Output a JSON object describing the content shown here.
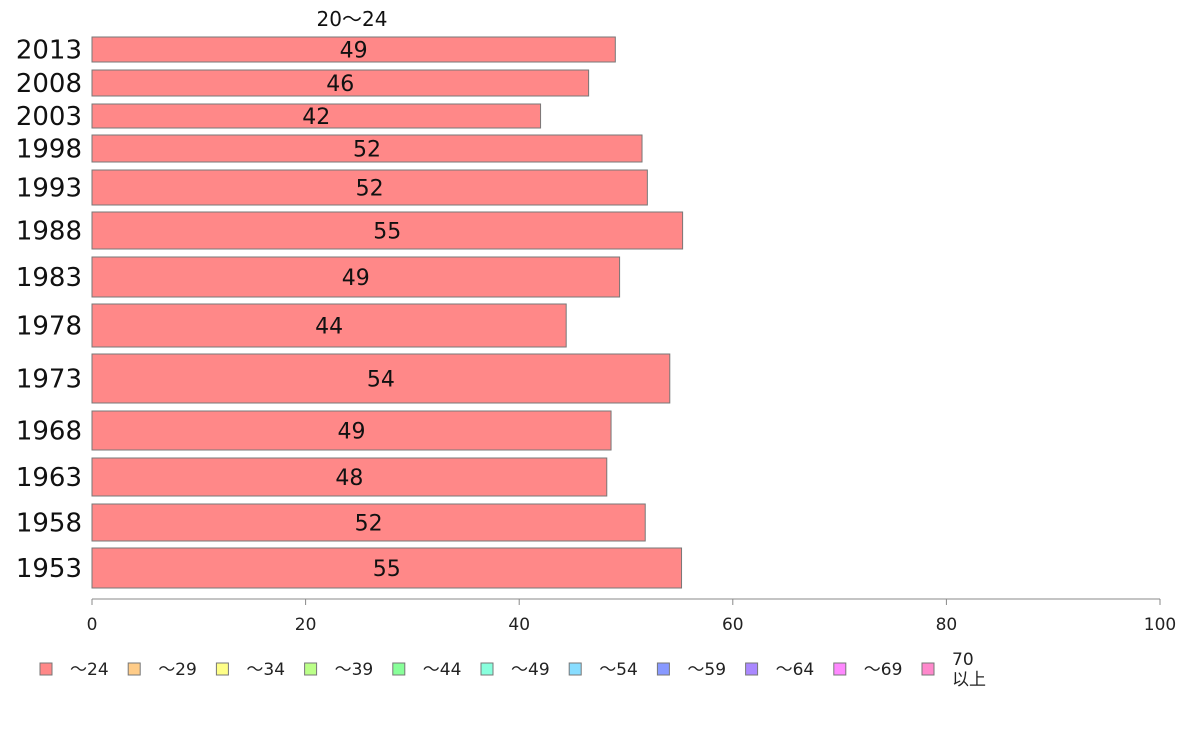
{
  "chart_data": {
    "type": "bar",
    "orientation": "horizontal",
    "title": "20～24",
    "categories": [
      "2013",
      "2008",
      "2003",
      "1998",
      "1993",
      "1988",
      "1983",
      "1978",
      "1973",
      "1968",
      "1963",
      "1958",
      "1953"
    ],
    "series": [
      {
        "name": "～24",
        "color": "#ff8888",
        "values": [
          49,
          46.5,
          42,
          51.5,
          52,
          55.3,
          49.4,
          44.4,
          54.1,
          48.6,
          48.2,
          51.8,
          55.2
        ],
        "labels": [
          "49",
          "46",
          "42",
          "52",
          "52",
          "55",
          "49",
          "44",
          "54",
          "49",
          "48",
          "52",
          "55"
        ]
      }
    ],
    "xlim": [
      0,
      100
    ],
    "xticks": [
      "0",
      "20",
      "40",
      "60",
      "80",
      "100"
    ],
    "grid": false,
    "legend": {
      "placement": "bottom",
      "items": [
        {
          "label": "～24",
          "color": "#ff8888"
        },
        {
          "label": "～29",
          "color": "#ffcc88"
        },
        {
          "label": "～34",
          "color": "#ffff88"
        },
        {
          "label": "～39",
          "color": "#bbff88"
        },
        {
          "label": "～44",
          "color": "#88ff99"
        },
        {
          "label": "～49",
          "color": "#88ffdd"
        },
        {
          "label": "～54",
          "color": "#88ddff"
        },
        {
          "label": "～59",
          "color": "#8899ff"
        },
        {
          "label": "～64",
          "color": "#aa88ff"
        },
        {
          "label": "～69",
          "color": "#ff88ff"
        },
        {
          "label": "70 以上",
          "lines": [
            "70",
            "以上"
          ],
          "color": "#ff88cc"
        }
      ]
    }
  }
}
